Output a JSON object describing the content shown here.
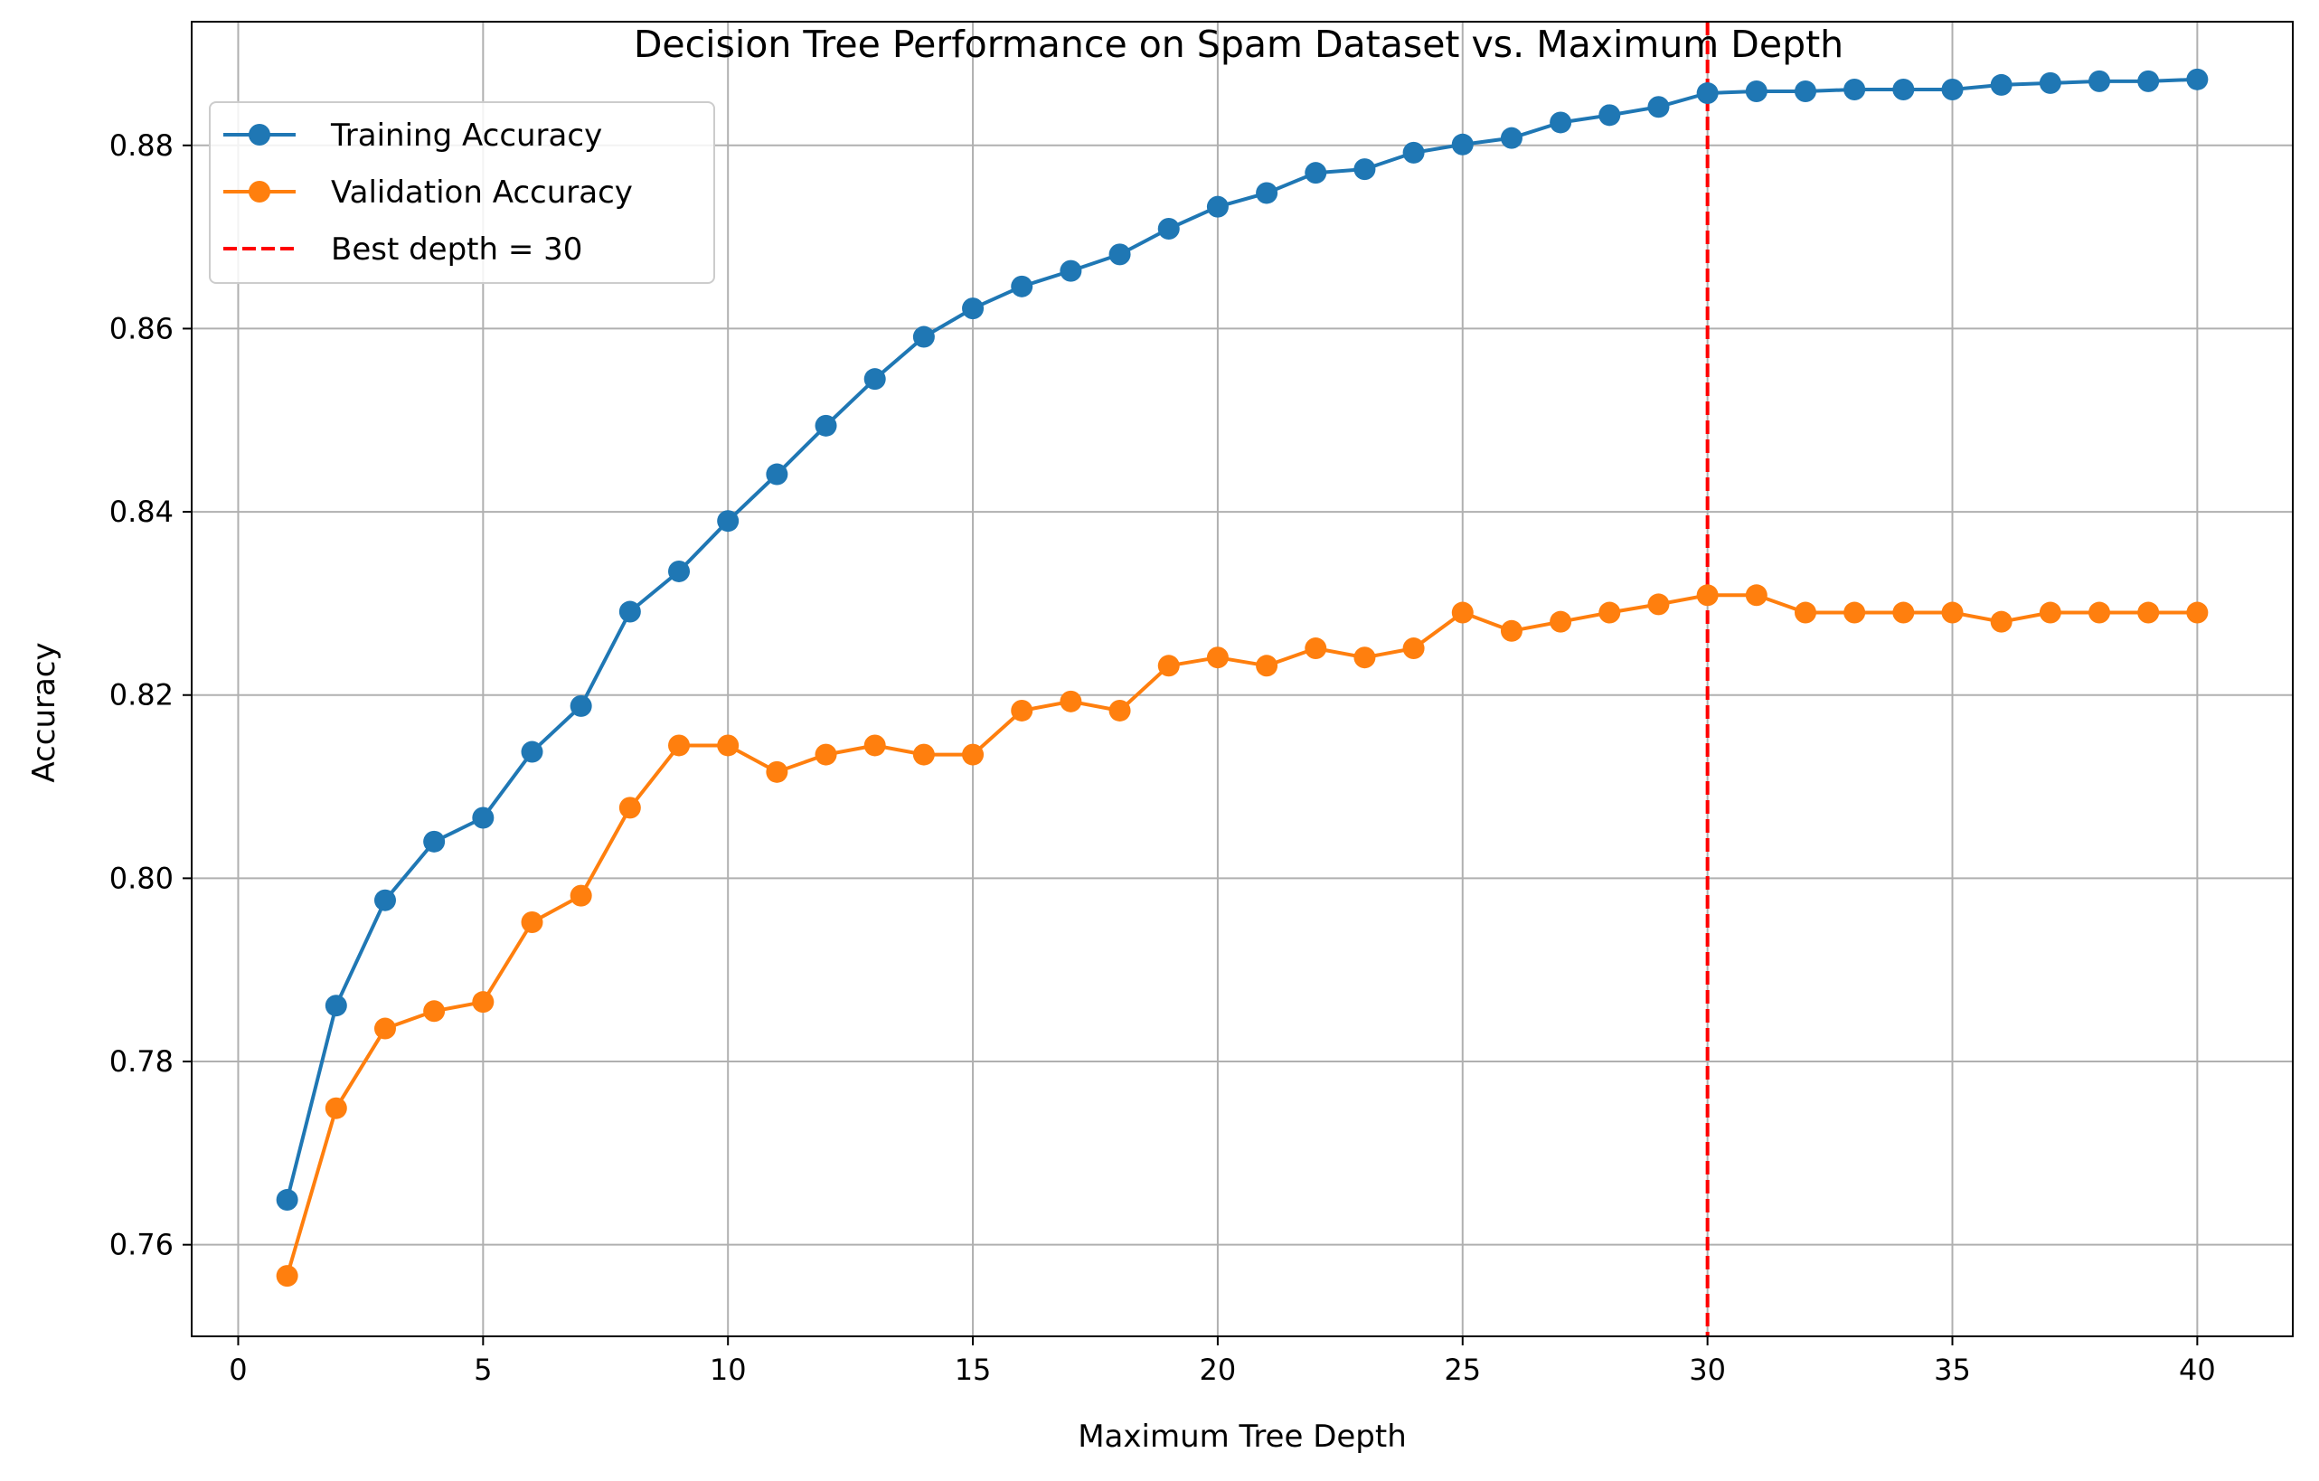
{
  "chart_data": {
    "type": "line",
    "title": "Decision Tree Performance on Spam Dataset vs. Maximum Depth",
    "xlabel": "Maximum Tree Depth",
    "ylabel": "Accuracy",
    "xlim": [
      -0.95,
      41.95
    ],
    "ylim": [
      0.75,
      0.8935
    ],
    "xticks": [
      0,
      5,
      10,
      15,
      20,
      25,
      30,
      35,
      40
    ],
    "yticks": [
      0.76,
      0.78,
      0.8,
      0.82,
      0.84,
      0.86,
      0.88
    ],
    "ytick_labels": [
      "0.76",
      "0.78",
      "0.80",
      "0.82",
      "0.84",
      "0.86",
      "0.88"
    ],
    "grid": true,
    "legend_position": "top-left",
    "x": [
      1,
      2,
      3,
      4,
      5,
      6,
      7,
      8,
      9,
      10,
      11,
      12,
      13,
      14,
      15,
      16,
      17,
      18,
      19,
      20,
      21,
      22,
      23,
      24,
      25,
      26,
      27,
      28,
      29,
      30,
      31,
      32,
      33,
      34,
      35,
      36,
      37,
      38,
      39,
      40
    ],
    "series": [
      {
        "name": "Training Accuracy",
        "color": "#1f77b4",
        "marker": "circle",
        "values": [
          0.7649,
          0.7861,
          0.7976,
          0.804,
          0.8066,
          0.8138,
          0.8188,
          0.8291,
          0.8335,
          0.839,
          0.8441,
          0.8494,
          0.8545,
          0.8591,
          0.8622,
          0.8646,
          0.8663,
          0.8681,
          0.8709,
          0.8733,
          0.8748,
          0.877,
          0.8774,
          0.8792,
          0.8801,
          0.8808,
          0.8825,
          0.8833,
          0.8842,
          0.8857,
          0.8859,
          0.8859,
          0.8861,
          0.8861,
          0.8861,
          0.8866,
          0.8868,
          0.887,
          0.887,
          0.8872
        ]
      },
      {
        "name": "Validation Accuracy",
        "color": "#ff7f0e",
        "marker": "circle",
        "values": [
          0.7566,
          0.7749,
          0.7836,
          0.7855,
          0.7865,
          0.7952,
          0.7981,
          0.8077,
          0.8145,
          0.8145,
          0.8116,
          0.8135,
          0.8145,
          0.8135,
          0.8135,
          0.8183,
          0.8193,
          0.8183,
          0.8232,
          0.8241,
          0.8232,
          0.8251,
          0.8241,
          0.8251,
          0.829,
          0.827,
          0.828,
          0.829,
          0.8299,
          0.8309,
          0.8309,
          0.829,
          0.829,
          0.829,
          0.829,
          0.828,
          0.829,
          0.829,
          0.829,
          0.829
        ]
      }
    ],
    "vline": {
      "name": "Best depth = 30",
      "x": 30,
      "color": "#ff0000",
      "style": "dashed"
    },
    "legend_labels": [
      "Training Accuracy",
      "Validation Accuracy",
      "Best depth = 30"
    ]
  }
}
